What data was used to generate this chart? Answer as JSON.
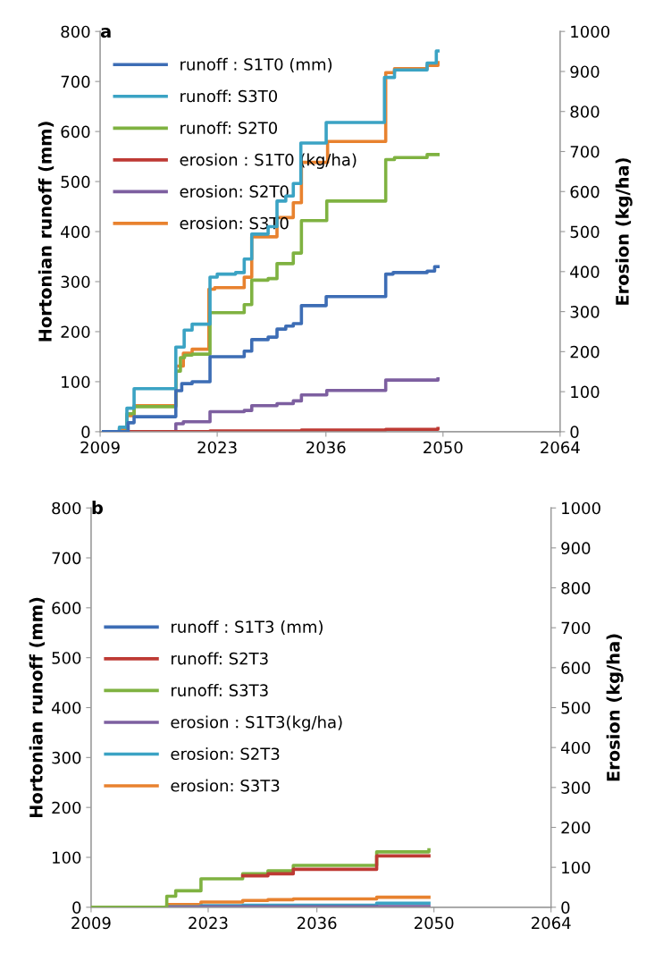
{
  "chart_data": [
    {
      "type": "step",
      "title": "a",
      "ylabel": "Hortonian runoff (mm)",
      "y2label": "Erosion (kg/ha)",
      "xlim": [
        2009,
        2064
      ],
      "xticks": [
        2009,
        2023,
        2036,
        2050,
        2064
      ],
      "ylim": [
        0,
        800
      ],
      "yticks": [
        0,
        100,
        200,
        300,
        400,
        500,
        600,
        700,
        800
      ],
      "y2lim": [
        0,
        1000
      ],
      "y2ticks": [
        0,
        100,
        200,
        300,
        400,
        500,
        600,
        700,
        800,
        900,
        1000
      ],
      "legend": "top left",
      "series": [
        {
          "name": "runoff : S1T0 (mm)",
          "color": "#3d6db5",
          "x": [
            2009.4,
            2012.35,
            2013.06,
            2018.05,
            2018.76,
            2020.0,
            2022.14,
            2026.23,
            2027.13,
            2029.09,
            2030.15,
            2031.2,
            2032.1,
            2033.07,
            2036.03,
            2043.15,
            2044.04,
            2048.1,
            2049.0,
            2049.4
          ],
          "values": [
            0,
            18,
            30,
            82,
            96,
            100,
            150,
            161,
            184,
            189,
            205,
            211,
            216,
            252,
            270,
            315,
            318,
            321,
            330,
            330
          ]
        },
        {
          "name": "runoff: S3T0",
          "color": "#3ba3c4",
          "x": [
            2009.4,
            2011.3,
            2012.2,
            2013.06,
            2018.05,
            2019.05,
            2020.0,
            2022.14,
            2023.0,
            2025.2,
            2026.23,
            2027.13,
            2029.09,
            2030.15,
            2031.2,
            2032.1,
            2033.0,
            2036.03,
            2043.0,
            2044.2,
            2048.1,
            2049.2,
            2049.4
          ],
          "values": [
            0,
            9,
            47,
            86,
            169,
            203,
            215,
            309,
            315,
            318,
            345,
            395,
            410,
            461,
            471,
            496,
            577,
            618,
            708,
            723,
            737,
            761,
            761
          ]
        },
        {
          "name": "runoff: S2T0",
          "color": "#7fb241",
          "x": [
            2009.4,
            2012.2,
            2013.06,
            2018.05,
            2018.6,
            2019.1,
            2020.0,
            2022.14,
            2026.23,
            2027.13,
            2029.09,
            2030.15,
            2032.1,
            2033.07,
            2036.1,
            2043.15,
            2044.2,
            2048.1,
            2049.4
          ],
          "values": [
            0,
            36,
            50,
            121,
            148,
            153,
            155,
            238,
            254,
            303,
            306,
            336,
            357,
            422,
            461,
            544,
            548,
            554,
            554
          ]
        },
        {
          "name": "erosion : S1T0 (kg/ha)",
          "color": "#be3a34",
          "axis": "y2",
          "x": [
            2009.4,
            2022.14,
            2033.07,
            2043.15,
            2049.4
          ],
          "values": [
            0,
            2,
            4,
            6,
            8
          ]
        },
        {
          "name": "erosion: S2T0",
          "color": "#7d5fa0",
          "axis": "y2",
          "x": [
            2009.4,
            2018.05,
            2018.95,
            2022.14,
            2026.23,
            2027.13,
            2030.15,
            2032.1,
            2033.07,
            2036.1,
            2043.15,
            2049.4
          ],
          "values": [
            0,
            20,
            25,
            50,
            53,
            65,
            70,
            77,
            92,
            103,
            129,
            132
          ]
        },
        {
          "name": "erosion: S3T0",
          "color": "#e8822f",
          "axis": "y2",
          "x": [
            2009.4,
            2011.3,
            2012.2,
            2013.06,
            2018.05,
            2018.95,
            2020.0,
            2022.0,
            2022.7,
            2026.23,
            2027.13,
            2030.15,
            2032.1,
            2033.07,
            2036.2,
            2043.15,
            2044.2,
            2048.1,
            2049.4
          ],
          "values": [
            0,
            8,
            40,
            65,
            164,
            196,
            206,
            356,
            360,
            386,
            487,
            535,
            572,
            673,
            725,
            897,
            907,
            915,
            922
          ]
        }
      ]
    },
    {
      "type": "step",
      "title": "b",
      "ylabel": "Hortonian runoff (mm)",
      "y2label": "Erosion (kg/ha)",
      "xlim": [
        2009,
        2064
      ],
      "xticks": [
        2009,
        2023,
        2036,
        2050,
        2064
      ],
      "ylim": [
        0,
        800
      ],
      "yticks": [
        0,
        100,
        200,
        300,
        400,
        500,
        600,
        700,
        800
      ],
      "y2lim": [
        0,
        1000
      ],
      "y2ticks": [
        0,
        100,
        200,
        300,
        400,
        500,
        600,
        700,
        800,
        900,
        1000
      ],
      "legend": "left",
      "series": [
        {
          "name": "runoff : S1T3 (mm)",
          "color": "#3d6db5"
        },
        {
          "name": "runoff: S2T3",
          "color": "#be3a34",
          "x": [
            2027.13,
            2030.15,
            2033.18,
            2043.15,
            2049.4
          ],
          "values": [
            63,
            67,
            76,
            103,
            103
          ]
        },
        {
          "name": "runoff: S3T3",
          "color": "#7fb241",
          "x": [
            2009.0,
            2018.05,
            2019.12,
            2022.14,
            2027.13,
            2030.15,
            2033.18,
            2043.15,
            2049.4
          ],
          "values": [
            0,
            22,
            33,
            57,
            67,
            73,
            84,
            111,
            115
          ]
        },
        {
          "name": "erosion : S1T3(kg/ha)",
          "color": "#7d5fa0",
          "axis": "y2",
          "x": [
            2009.0,
            2022.14,
            2043.15,
            2049.4
          ],
          "values": [
            0,
            1,
            2,
            2
          ]
        },
        {
          "name": "erosion: S2T3",
          "color": "#3ba3c4",
          "axis": "y2",
          "x": [
            2009.0,
            2018.05,
            2022.14,
            2027.13,
            2043.15,
            2049.4
          ],
          "values": [
            0,
            1,
            4,
            5,
            10,
            10
          ]
        },
        {
          "name": "erosion: S3T3",
          "color": "#e8822f",
          "axis": "y2",
          "x": [
            2009.0,
            2018.05,
            2022.14,
            2027.13,
            2030.15,
            2033.18,
            2043.15,
            2049.4
          ],
          "values": [
            0,
            7,
            13,
            17,
            19,
            21,
            25,
            25
          ]
        }
      ]
    }
  ]
}
